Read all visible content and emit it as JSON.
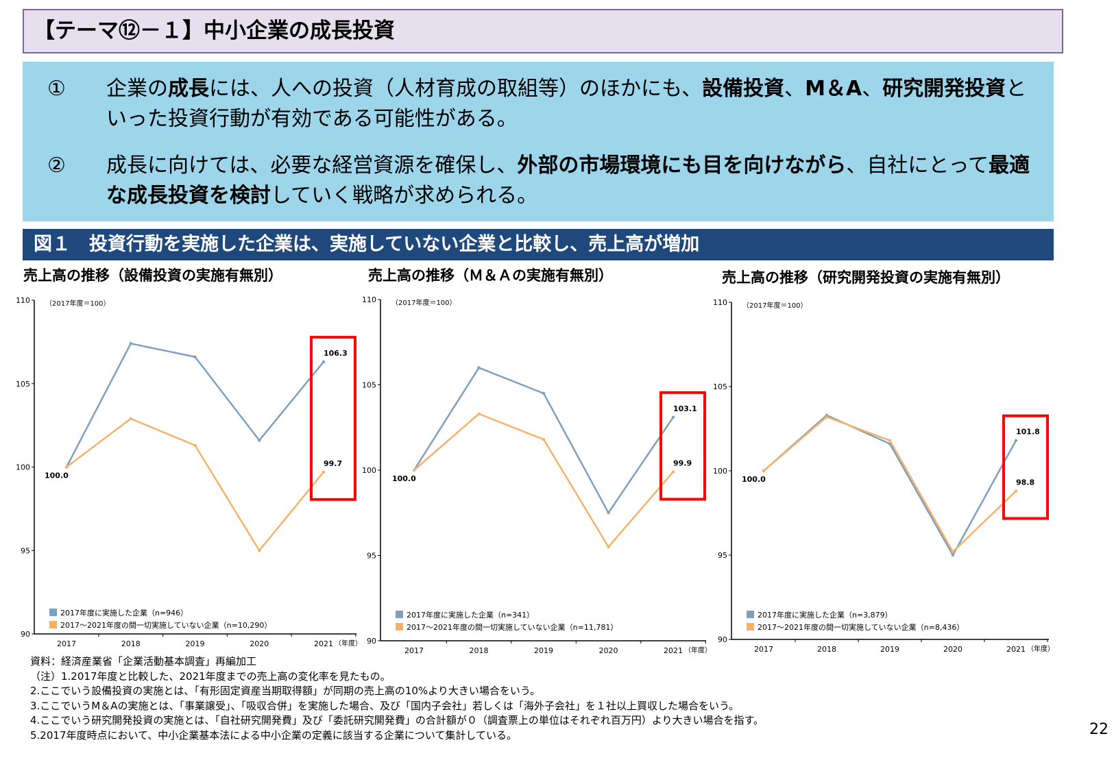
{
  "title": "【テーマ⑫－１】中小企業の成長投資",
  "summary": [
    {
      "num": "①",
      "parts": [
        [
          "企業の",
          false
        ],
        [
          "成長",
          true
        ],
        [
          "には、人への投資（人材育成の取組等）のほかにも、",
          false
        ],
        [
          "設備投資",
          true
        ],
        [
          "、",
          false
        ],
        [
          "M＆A",
          true
        ],
        [
          "、",
          false
        ],
        [
          "研究開発投資",
          true
        ],
        [
          "といった投資行動が有効である可能性がある。",
          false
        ]
      ]
    },
    {
      "num": "②",
      "parts": [
        [
          "成長に向けては、必要な経営資源を確保し、",
          false
        ],
        [
          "外部の市場環境にも目を向けながら",
          true
        ],
        [
          "、自社にとって",
          false
        ],
        [
          "最適な成長投資を検討",
          true
        ],
        [
          "していく戦略が求められる。",
          false
        ]
      ]
    }
  ],
  "figure_title": "図１　投資行動を実施した企業は、実施していない企業と比較し、売上高が増加",
  "colors": {
    "blue": "#7f9fc0",
    "orange": "#f6b26b",
    "highlight": "#ff0000",
    "figure_bar": "#1f497d",
    "summary_bg": "#9dd5ea"
  },
  "chart_data": [
    {
      "type": "line",
      "title": "売上高の推移（設備投資の実施有無別）",
      "unit_note": "（2017年度＝100）",
      "categories": [
        "2017",
        "2018",
        "2019",
        "2020",
        "2021"
      ],
      "x_unit": "（年度）",
      "ylim": [
        90,
        110
      ],
      "yticks": [
        90,
        95,
        100,
        105,
        110
      ],
      "series": [
        {
          "name": "2017年度に実施した企業（n=946）",
          "color": "#7f9fc0",
          "values": [
            100.0,
            107.4,
            106.6,
            101.6,
            106.3
          ]
        },
        {
          "name": "2017～2021年度の間一切実施していない企業（n=10,290）",
          "color": "#f6b26b",
          "values": [
            100.0,
            102.9,
            101.3,
            95.0,
            99.7
          ]
        }
      ],
      "labels": {
        "start": "100.0",
        "end_series1": "106.3",
        "end_series2": "99.7"
      },
      "highlight": "2021"
    },
    {
      "type": "line",
      "title": "売上高の推移（Ｍ＆Ａの実施有無別）",
      "unit_note": "（2017年度＝100）",
      "categories": [
        "2017",
        "2018",
        "2019",
        "2020",
        "2021"
      ],
      "x_unit": "（年度）",
      "ylim": [
        90,
        110
      ],
      "yticks": [
        90,
        95,
        100,
        105,
        110
      ],
      "series": [
        {
          "name": "2017年度に実施した企業（n=341）",
          "color": "#7f9fc0",
          "values": [
            100.0,
            106.0,
            104.5,
            97.5,
            103.1
          ]
        },
        {
          "name": "2017～2021年度の間一切実施していない企業（n=11,781）",
          "color": "#f6b26b",
          "values": [
            100.0,
            103.3,
            101.8,
            95.5,
            99.9
          ]
        }
      ],
      "labels": {
        "start": "100.0",
        "end_series1": "103.1",
        "end_series2": "99.9"
      },
      "highlight": "2021"
    },
    {
      "type": "line",
      "title": "売上高の推移（研究開発投資の実施有無別）",
      "unit_note": "（2017年度＝100）",
      "categories": [
        "2017",
        "2018",
        "2019",
        "2020",
        "2021"
      ],
      "x_unit": "（年度）",
      "ylim": [
        90,
        110
      ],
      "yticks": [
        90,
        95,
        100,
        105,
        110
      ],
      "series": [
        {
          "name": "2017年度に実施した企業（n=3,879）",
          "color": "#7f9fc0",
          "values": [
            100.0,
            103.3,
            101.6,
            95.0,
            101.8
          ]
        },
        {
          "name": "2017～2021年度の間一切実施していない企業（n=8,436）",
          "color": "#f6b26b",
          "values": [
            100.0,
            103.2,
            101.8,
            95.2,
            98.8
          ]
        }
      ],
      "labels": {
        "start": "100.0",
        "end_series1": "101.8",
        "end_series2": "98.8"
      },
      "highlight": "2021"
    }
  ],
  "notes": [
    "資料：経済産業省「企業活動基本調査」再編加工",
    "（注）1.2017年度と比較した、2021年度までの売上高の変化率を見たもの。",
    "2.ここでいう設備投資の実施とは、「有形固定資産当期取得額」が同期の売上高の10%より大きい場合をいう。",
    "3.ここでいうM＆Aの実施とは、「事業譲受」、「吸収合併」を実施した場合、及び「国内子会社」若しくは「海外子会社」を１社以上買収した場合をいう。",
    "4.ここでいう研究開発投資の実施とは、「自社研究開発費」及び「委託研究開発費」の合計額が０（調査票上の単位はそれぞれ百万円）より大きい場合を指す。",
    "5.2017年度時点において、中小企業基本法による中小企業の定義に該当する企業について集計している。"
  ],
  "page_number": "22"
}
